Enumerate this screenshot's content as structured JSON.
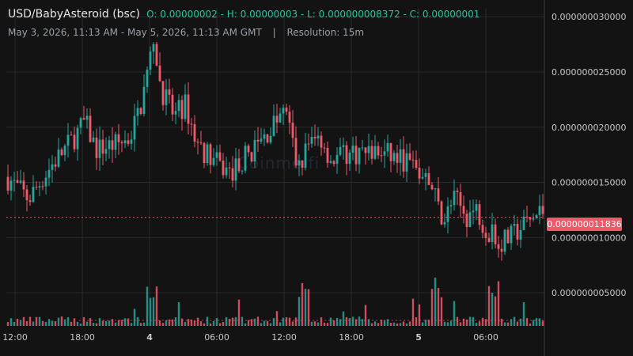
{
  "header": {
    "pair": "USD/BabyAsteroid (bsc)",
    "ohlc": "O: 0.00000002 - H: 0.00000003 - L: 0.000000008372 - C: 0.00000001",
    "range": "May 3, 2026, 11:13 AM - May 5, 2026, 11:13 AM GMT",
    "separator": "|",
    "resolution": "Resolution: 15m"
  },
  "watermark": "Coinme.fi",
  "current_price_label": "0.000000011836",
  "colors": {
    "up": "#26a69a",
    "down": "#ef5a6b",
    "background": "#131313",
    "grid": "#2a2a2a"
  },
  "chart_data": {
    "type": "candlestick",
    "y_axis": {
      "tick_labels": [
        "0.000000030000",
        "0.000000025000",
        "0.000000020000",
        "0.000000015000",
        "0.000000010000",
        "0.000000005000"
      ],
      "ticks": [
        3e-08,
        2.5e-08,
        2e-08,
        1.5e-08,
        1e-08,
        5e-09
      ],
      "range": [
        2e-09,
        3.08e-08
      ]
    },
    "x_axis": {
      "tick_labels": [
        "12:00",
        "18:00",
        "4",
        "06:00",
        "12:00",
        "18:00",
        "5",
        "06:00"
      ],
      "tick_positions_hours": [
        0.78,
        6.78,
        12.78,
        18.78,
        24.78,
        30.78,
        36.78,
        42.78
      ],
      "range_hours": [
        0,
        48
      ]
    },
    "current_price": 1.1836e-08,
    "price_path_keypoints": [
      [
        0,
        1.55e-08
      ],
      [
        2,
        1.35e-08
      ],
      [
        4,
        1.65e-08
      ],
      [
        6,
        1.9e-08
      ],
      [
        7,
        2.05e-08
      ],
      [
        8,
        1.8e-08
      ],
      [
        10,
        1.85e-08
      ],
      [
        11,
        1.9e-08
      ],
      [
        12,
        2.2e-08
      ],
      [
        13,
        2.7e-08
      ],
      [
        14,
        2.3e-08
      ],
      [
        15,
        2.1e-08
      ],
      [
        16,
        2.2e-08
      ],
      [
        17,
        1.85e-08
      ],
      [
        19,
        1.65e-08
      ],
      [
        20,
        1.58e-08
      ],
      [
        21,
        1.7e-08
      ],
      [
        23,
        1.9e-08
      ],
      [
        24,
        2.05e-08
      ],
      [
        25,
        2.15e-08
      ],
      [
        26,
        1.6e-08
      ],
      [
        27,
        1.85e-08
      ],
      [
        28,
        1.92e-08
      ],
      [
        29,
        1.7e-08
      ],
      [
        30,
        1.75e-08
      ],
      [
        32,
        1.78e-08
      ],
      [
        34,
        1.75e-08
      ],
      [
        36,
        1.68e-08
      ],
      [
        37,
        1.55e-08
      ],
      [
        38,
        1.45e-08
      ],
      [
        39,
        1.15e-08
      ],
      [
        40,
        1.35e-08
      ],
      [
        41,
        1.2e-08
      ],
      [
        42,
        1.25e-08
      ],
      [
        43,
        1.05e-08
      ],
      [
        44,
        9.5e-09
      ],
      [
        45,
        1e-08
      ],
      [
        46,
        1.1e-08
      ],
      [
        48,
        1.25e-08
      ]
    ],
    "volume_spikes_hours": [
      13,
      26.5,
      38.5,
      43.5
    ]
  }
}
